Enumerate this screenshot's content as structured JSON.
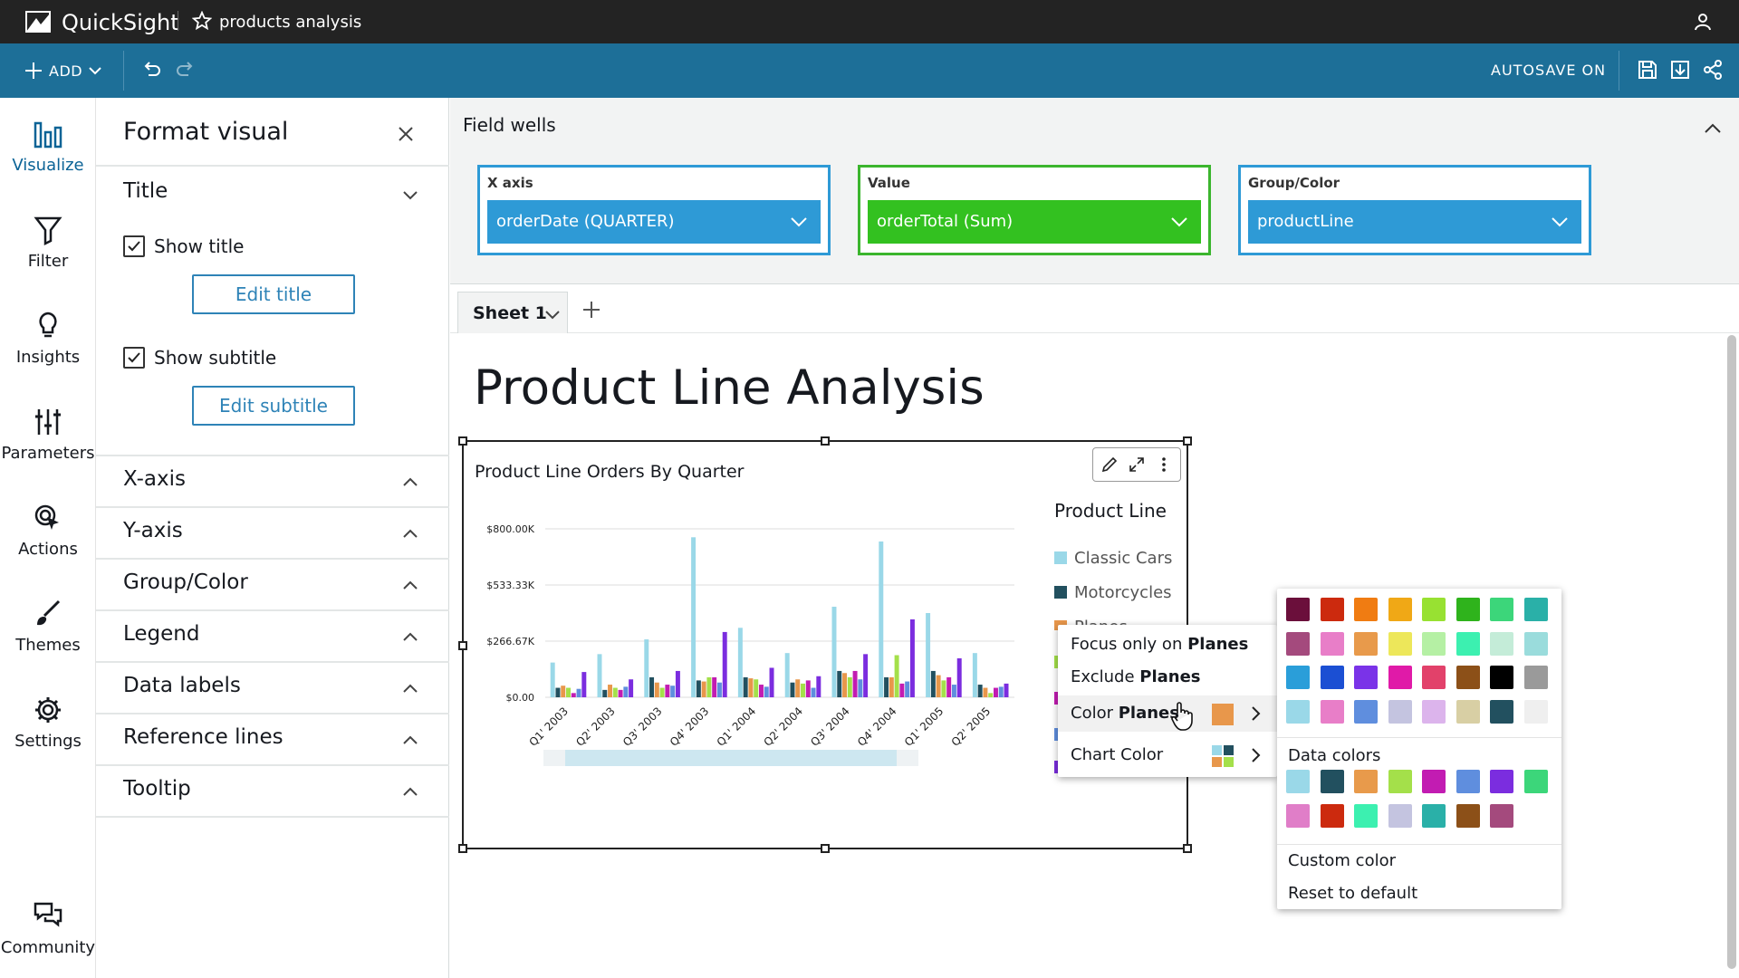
{
  "app": {
    "name": "QuickSight",
    "document_title": "products analysis"
  },
  "toolbar": {
    "add_label": "ADD",
    "autosave_label": "AUTOSAVE ON"
  },
  "rail": {
    "items": [
      {
        "label": "Visualize"
      },
      {
        "label": "Filter"
      },
      {
        "label": "Insights"
      },
      {
        "label": "Parameters"
      },
      {
        "label": "Actions"
      },
      {
        "label": "Themes"
      },
      {
        "label": "Settings"
      },
      {
        "label": "Community"
      }
    ]
  },
  "format_panel": {
    "title": "Format visual",
    "sections": {
      "title": "Title",
      "x_axis": "X-axis",
      "y_axis": "Y-axis",
      "group_color": "Group/Color",
      "legend": "Legend",
      "data_labels": "Data labels",
      "reference_lines": "Reference lines",
      "tooltip": "Tooltip"
    },
    "show_title_label": "Show title",
    "edit_title_label": "Edit title",
    "show_subtitle_label": "Show subtitle",
    "edit_subtitle_label": "Edit subtitle"
  },
  "field_wells": {
    "title": "Field wells",
    "x_axis": {
      "label": "X axis",
      "value": "orderDate (QUARTER)"
    },
    "value": {
      "label": "Value",
      "value": "orderTotal (Sum)"
    },
    "group_color": {
      "label": "Group/Color",
      "value": "productLine"
    }
  },
  "sheet": {
    "tab_label": "Sheet 1",
    "title": "Product Line Analysis"
  },
  "visual": {
    "title": "Product Line Orders By Quarter",
    "legend_title": "Product Line",
    "legend_items": [
      "Classic Cars",
      "Motorcycles",
      "Planes"
    ]
  },
  "chart_data": {
    "type": "bar",
    "title": "Product Line Orders By Quarter",
    "categories": [
      "Q1' 2003",
      "Q2' 2003",
      "Q3' 2003",
      "Q4' 2003",
      "Q1' 2004",
      "Q2' 2004",
      "Q3' 2004",
      "Q4' 2004",
      "Q1' 2005",
      "Q2' 2005"
    ],
    "y_ticks": [
      "$0.00",
      "$266.67K",
      "$533.33K",
      "$800.00K"
    ],
    "ylim": [
      0,
      800000
    ],
    "legend_placement": "right",
    "grid": true,
    "series": [
      {
        "name": "Classic Cars",
        "color": "#9ad8e8",
        "values": [
          165000,
          205000,
          275000,
          760000,
          330000,
          210000,
          430000,
          740000,
          400000,
          210000
        ]
      },
      {
        "name": "Motorcycles",
        "color": "#22505f",
        "values": [
          45000,
          35000,
          95000,
          80000,
          95000,
          70000,
          125000,
          95000,
          125000,
          60000
        ]
      },
      {
        "name": "Planes",
        "color": "#e8974b",
        "values": [
          55000,
          60000,
          70000,
          75000,
          90000,
          85000,
          115000,
          95000,
          105000,
          45000
        ]
      },
      {
        "color": "#a4e04a",
        "values": [
          45000,
          45000,
          45000,
          95000,
          85000,
          65000,
          95000,
          200000,
          80000,
          20000
        ]
      },
      {
        "color": "#c21cb2",
        "values": [
          20000,
          35000,
          60000,
          95000,
          60000,
          80000,
          125000,
          65000,
          95000,
          45000
        ]
      },
      {
        "color": "#5f8ede",
        "values": [
          40000,
          50000,
          55000,
          70000,
          50000,
          45000,
          85000,
          75000,
          60000,
          50000
        ]
      },
      {
        "color": "#7b2ddf",
        "values": [
          120000,
          85000,
          125000,
          310000,
          140000,
          100000,
          205000,
          370000,
          185000,
          65000
        ]
      }
    ]
  },
  "context_menu": {
    "focus_prefix": "Focus only on",
    "exclude_prefix": "Exclude",
    "color_prefix": "Color",
    "target": "Planes",
    "chart_color": "Chart Color",
    "swatch_color": "#e8974b"
  },
  "palette": {
    "colors": [
      "#6b0f3b",
      "#cc2a0e",
      "#f07c12",
      "#f0a816",
      "#98e132",
      "#2fb31c",
      "#3cd67a",
      "#2ab0a8",
      "#a44a7d",
      "#e87ec8",
      "#e89a4b",
      "#ede75a",
      "#b5f0a4",
      "#3cf0b0",
      "#c4ecd8",
      "#9adcdc",
      "#2a9ed9",
      "#1b4fd3",
      "#7a33e8",
      "#e01aa8",
      "#e2416a",
      "#8c5018",
      "#000000",
      "#9a9a9a",
      "#9ad8e8",
      "#e87ec8",
      "#5f8ede",
      "#c4c4e0",
      "#dcb4ec",
      "#d8cfa4",
      "#22505f",
      "#efefef"
    ],
    "data_colors_label": "Data colors",
    "data_colors": [
      "#9ad8e8",
      "#22505f",
      "#e89a4b",
      "#a4e04a",
      "#c21cb2",
      "#5f8ede",
      "#7b2ddf",
      "#3cd67a",
      "#e07ec8",
      "#cc2a0e",
      "#3cf0b0",
      "#c4c4e0",
      "#2ab0a8",
      "#8c5018",
      "#a44a7d"
    ],
    "custom_color_label": "Custom color",
    "reset_label": "Reset to default"
  }
}
